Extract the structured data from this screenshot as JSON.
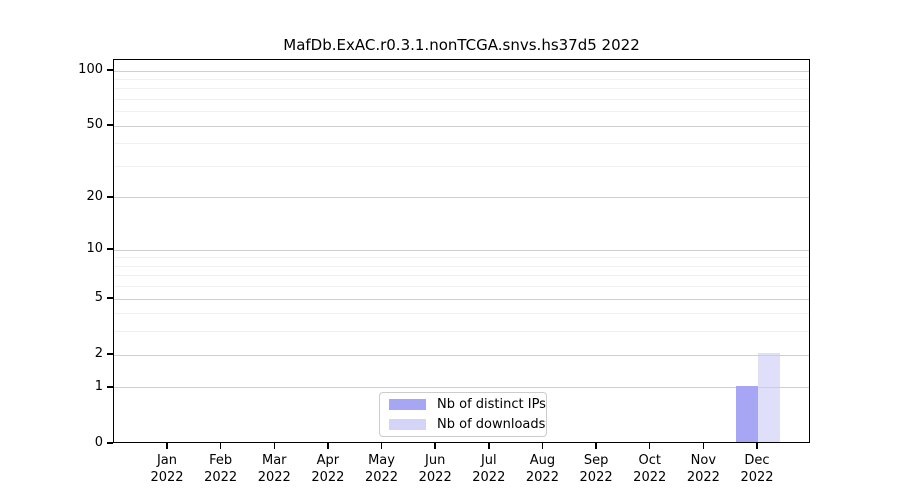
{
  "chart_data": {
    "type": "bar",
    "title": "MafDb.ExAC.r0.3.1.nonTCGA.snvs.hs37d5 2022",
    "year": "2022",
    "categories": [
      "Jan 2022",
      "Feb 2022",
      "Mar 2022",
      "Apr 2022",
      "May 2022",
      "Jun 2022",
      "Jul 2022",
      "Aug 2022",
      "Sep 2022",
      "Oct 2022",
      "Nov 2022",
      "Dec 2022"
    ],
    "months": [
      "Jan",
      "Feb",
      "Mar",
      "Apr",
      "May",
      "Jun",
      "Jul",
      "Aug",
      "Sep",
      "Oct",
      "Nov",
      "Dec"
    ],
    "series": [
      {
        "name": "Nb of distinct IPs",
        "color": "#a6a6f5",
        "alpha": 1.0,
        "values": [
          0,
          0,
          0,
          0,
          0,
          0,
          0,
          0,
          0,
          0,
          0,
          1
        ]
      },
      {
        "name": "Nb of downloads",
        "color": "#c9c9f6",
        "alpha": 0.6,
        "values": [
          0,
          0,
          0,
          0,
          0,
          0,
          0,
          0,
          0,
          0,
          0,
          2
        ]
      }
    ],
    "xlabel": "",
    "ylabel": "",
    "yscale": "log1p",
    "ylim": [
      0,
      100
    ],
    "yticks": [
      0,
      1,
      2,
      5,
      10,
      20,
      50,
      100
    ],
    "minor_gridlines": [
      3,
      4,
      6,
      7,
      8,
      9,
      30,
      40,
      60,
      70,
      80,
      90
    ],
    "grid": "horizontal",
    "legend_position": "inside-bottom-center"
  },
  "colors": {
    "major_grid": "#cfcfcf",
    "minor_grid": "#f0f0f0",
    "axis": "#000000",
    "legend_border": "#cccccc",
    "bar_distinct_ips": "#a6a6f5",
    "bar_downloads": "#dedefa"
  }
}
